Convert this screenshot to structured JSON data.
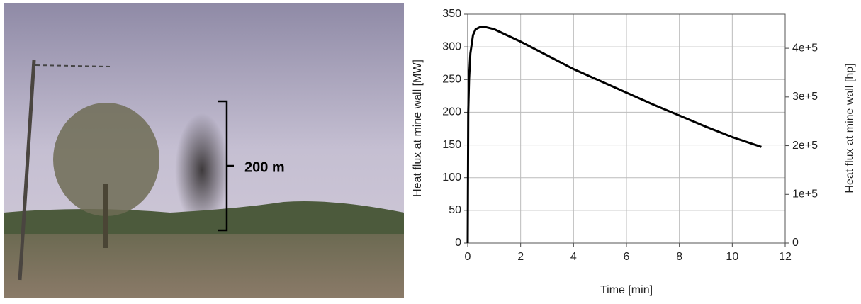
{
  "photo": {
    "annotation": "200 m"
  },
  "chart_data": {
    "type": "line",
    "xlabel": "Time [min]",
    "ylabel": "Heat flux at mine wall [MW]",
    "y2label": "Heat flux at mine wall [hp]",
    "series": [
      {
        "color": "#000000",
        "x": [
          0,
          0.02,
          0.05,
          0.1,
          0.2,
          0.3,
          0.5,
          0.7,
          1,
          2,
          3,
          4,
          5,
          6,
          7,
          8,
          9,
          10,
          11.1
        ],
        "values": [
          0,
          200,
          250,
          290,
          318,
          327,
          331,
          330,
          327,
          308,
          287,
          266,
          248,
          230,
          212,
          195,
          178,
          162,
          147
        ]
      }
    ],
    "xlim": [
      0,
      12
    ],
    "xticks": [
      0,
      2,
      4,
      6,
      8,
      10,
      12
    ],
    "ylim": [
      0,
      350
    ],
    "yticks": [
      0,
      50,
      100,
      150,
      200,
      250,
      300,
      350
    ],
    "y2lim": [
      0,
      470000
    ],
    "y2ticks": [
      0,
      {
        "value": 100000,
        "label": "1e+5"
      },
      {
        "value": 200000,
        "label": "2e+5"
      },
      {
        "value": 300000,
        "label": "3e+5"
      },
      {
        "value": 400000,
        "label": "4e+5"
      }
    ],
    "grid": true
  }
}
